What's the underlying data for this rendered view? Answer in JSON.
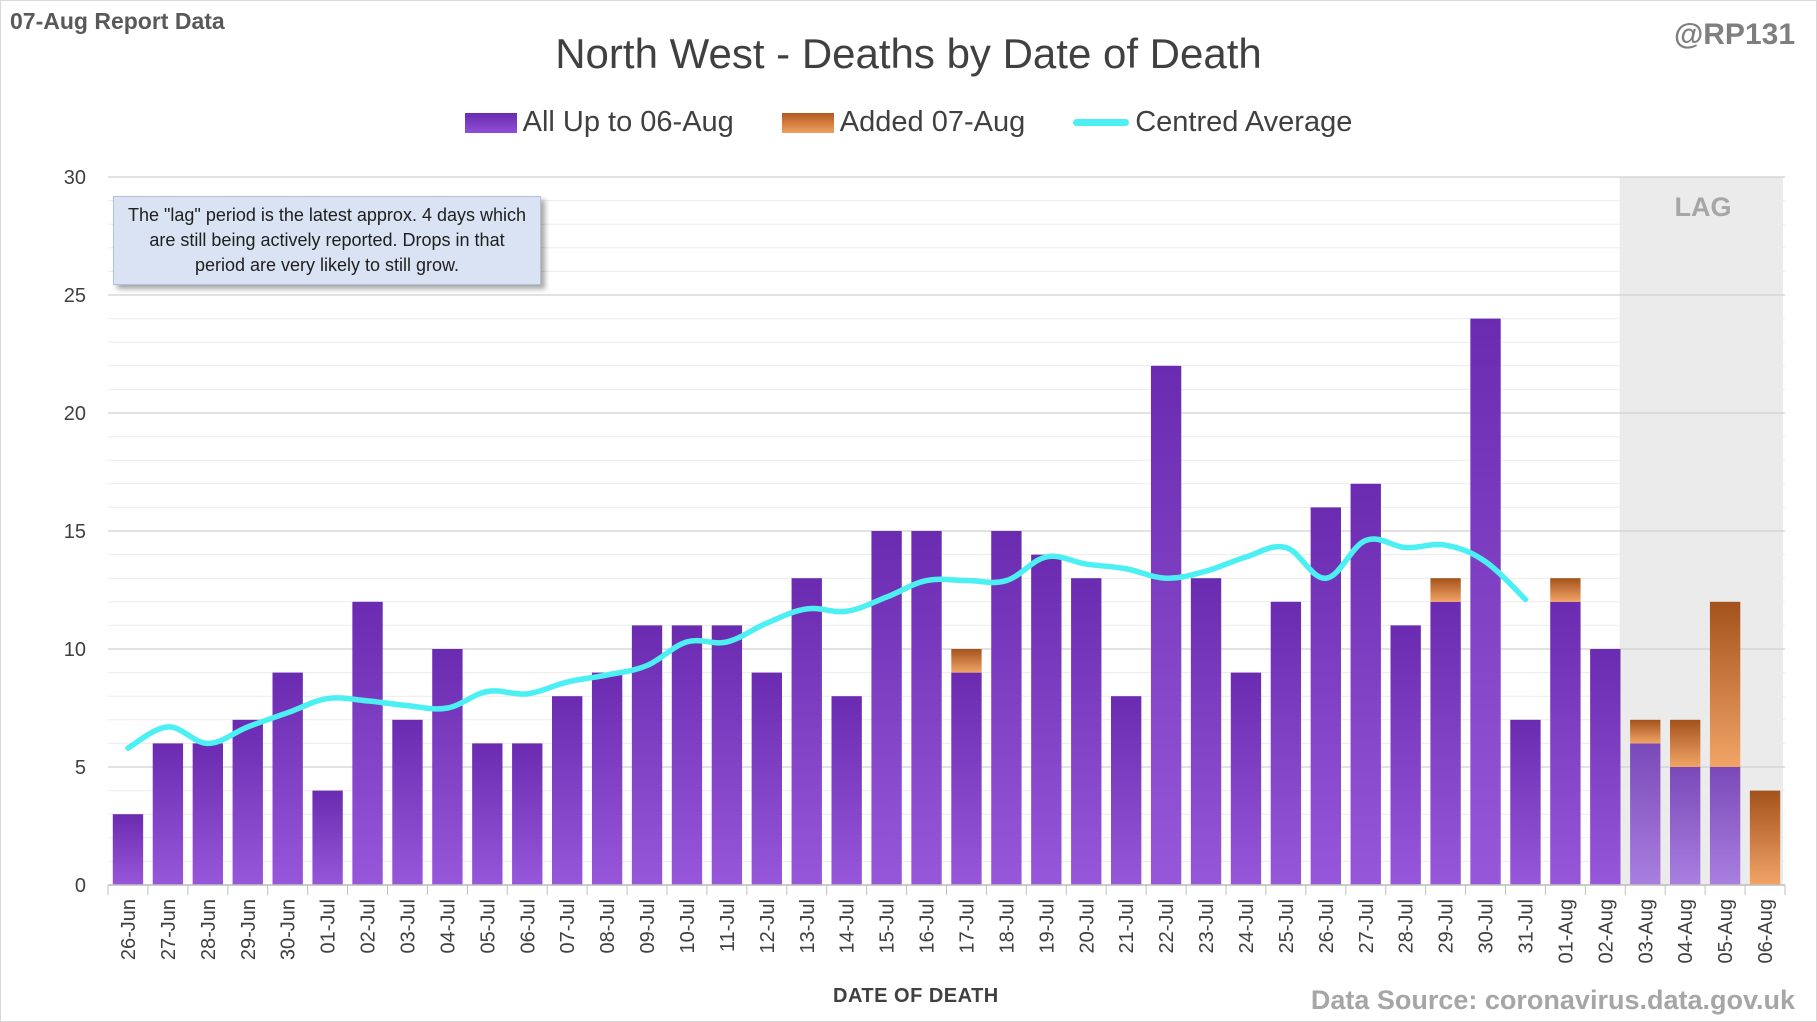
{
  "header": {
    "report_label": "07-Aug Report Data",
    "handle": "@RP131"
  },
  "note": "The \"lag\" period is the latest approx. 4 days which are still being actively reported.  Drops in that period are very likely to still grow.",
  "lag_label": "LAG",
  "source": "Data Source: coronavirus.data.gov.uk",
  "colors": {
    "purple": "#7030a0",
    "orange": "#e07828",
    "average_line": "#4cf0f2",
    "lag_shade": "#ebebeb"
  },
  "chart_data": {
    "type": "bar",
    "title": "North West - Deaths by Date of Death",
    "xlabel": "DATE OF DEATH",
    "ylabel": "",
    "ylim": [
      0,
      30
    ],
    "yticks": [
      0,
      5,
      10,
      15,
      20,
      25,
      30
    ],
    "stacked": true,
    "legend_position": "top",
    "categories": [
      "26-Jun",
      "27-Jun",
      "28-Jun",
      "29-Jun",
      "30-Jun",
      "01-Jul",
      "02-Jul",
      "03-Jul",
      "04-Jul",
      "05-Jul",
      "06-Jul",
      "07-Jul",
      "08-Jul",
      "09-Jul",
      "10-Jul",
      "11-Jul",
      "12-Jul",
      "13-Jul",
      "14-Jul",
      "15-Jul",
      "16-Jul",
      "17-Jul",
      "18-Jul",
      "19-Jul",
      "20-Jul",
      "21-Jul",
      "22-Jul",
      "23-Jul",
      "24-Jul",
      "25-Jul",
      "26-Jul",
      "27-Jul",
      "28-Jul",
      "29-Jul",
      "30-Jul",
      "31-Jul",
      "01-Aug",
      "02-Aug",
      "03-Aug",
      "04-Aug",
      "05-Aug",
      "06-Aug"
    ],
    "lag_categories": [
      "03-Aug",
      "04-Aug",
      "05-Aug",
      "06-Aug"
    ],
    "series": [
      {
        "name": "All Up to 06-Aug",
        "type": "bar",
        "values": [
          3,
          6,
          6,
          7,
          9,
          4,
          12,
          7,
          10,
          6,
          6,
          8,
          9,
          11,
          11,
          11,
          9,
          13,
          8,
          15,
          15,
          9,
          15,
          14,
          13,
          8,
          22,
          13,
          9,
          12,
          16,
          17,
          11,
          12,
          24,
          7,
          12,
          10,
          6,
          5,
          5,
          0
        ]
      },
      {
        "name": "Added 07-Aug",
        "type": "bar",
        "values": [
          0,
          0,
          0,
          0,
          0,
          0,
          0,
          0,
          0,
          0,
          0,
          0,
          0,
          0,
          0,
          0,
          0,
          0,
          0,
          0,
          0,
          1,
          0,
          0,
          0,
          0,
          0,
          0,
          0,
          0,
          0,
          0,
          0,
          1,
          0,
          0,
          1,
          0,
          1,
          2,
          7,
          4
        ]
      },
      {
        "name": "Centred Average",
        "type": "line",
        "values": [
          5.8,
          6.7,
          6.0,
          6.7,
          7.3,
          7.9,
          7.8,
          7.6,
          7.5,
          8.2,
          8.1,
          8.6,
          8.9,
          9.3,
          10.3,
          10.3,
          11.1,
          11.7,
          11.6,
          12.2,
          12.9,
          12.9,
          12.9,
          13.9,
          13.6,
          13.4,
          13.0,
          13.3,
          13.9,
          14.3,
          13.0,
          14.6,
          14.3,
          14.4,
          13.7,
          12.1,
          null,
          null,
          null,
          null,
          null,
          null
        ]
      }
    ]
  }
}
